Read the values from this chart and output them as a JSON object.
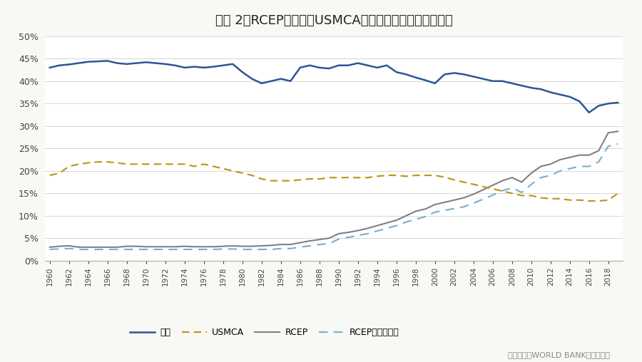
{
  "title": "图表 2：RCEP、欧盟及USMCA服务和货物出口占全球比重",
  "source_text": "数据来源：WORLD BANK、兴业研究",
  "years": [
    1960,
    1961,
    1962,
    1963,
    1964,
    1965,
    1966,
    1967,
    1968,
    1969,
    1970,
    1971,
    1972,
    1973,
    1974,
    1975,
    1976,
    1977,
    1978,
    1979,
    1980,
    1981,
    1982,
    1983,
    1984,
    1985,
    1986,
    1987,
    1988,
    1989,
    1990,
    1991,
    1992,
    1993,
    1994,
    1995,
    1996,
    1997,
    1998,
    1999,
    2000,
    2001,
    2002,
    2003,
    2004,
    2005,
    2006,
    2007,
    2008,
    2009,
    2010,
    2011,
    2012,
    2013,
    2014,
    2015,
    2016,
    2017,
    2018,
    2019
  ],
  "eu": [
    0.43,
    0.435,
    0.437,
    0.44,
    0.443,
    0.444,
    0.445,
    0.44,
    0.438,
    0.44,
    0.442,
    0.44,
    0.438,
    0.435,
    0.43,
    0.432,
    0.43,
    0.432,
    0.435,
    0.438,
    0.42,
    0.405,
    0.395,
    0.4,
    0.405,
    0.4,
    0.43,
    0.435,
    0.43,
    0.428,
    0.435,
    0.435,
    0.44,
    0.435,
    0.43,
    0.435,
    0.42,
    0.415,
    0.408,
    0.402,
    0.395,
    0.415,
    0.418,
    0.415,
    0.41,
    0.405,
    0.4,
    0.4,
    0.395,
    0.39,
    0.385,
    0.382,
    0.375,
    0.37,
    0.365,
    0.355,
    0.33,
    0.345,
    0.35,
    0.352
  ],
  "usmca": [
    0.19,
    0.195,
    0.21,
    0.215,
    0.218,
    0.22,
    0.22,
    0.218,
    0.215,
    0.215,
    0.215,
    0.215,
    0.215,
    0.215,
    0.215,
    0.21,
    0.215,
    0.21,
    0.205,
    0.2,
    0.195,
    0.19,
    0.182,
    0.178,
    0.178,
    0.178,
    0.18,
    0.182,
    0.182,
    0.185,
    0.185,
    0.185,
    0.185,
    0.185,
    0.188,
    0.19,
    0.19,
    0.188,
    0.19,
    0.19,
    0.19,
    0.186,
    0.18,
    0.175,
    0.17,
    0.165,
    0.16,
    0.155,
    0.15,
    0.145,
    0.145,
    0.14,
    0.138,
    0.138,
    0.135,
    0.135,
    0.133,
    0.133,
    0.135,
    0.15
  ],
  "rcep": [
    0.03,
    0.032,
    0.033,
    0.03,
    0.03,
    0.03,
    0.03,
    0.03,
    0.032,
    0.032,
    0.031,
    0.031,
    0.031,
    0.031,
    0.032,
    0.031,
    0.031,
    0.031,
    0.032,
    0.033,
    0.032,
    0.032,
    0.033,
    0.034,
    0.036,
    0.036,
    0.04,
    0.044,
    0.047,
    0.05,
    0.06,
    0.063,
    0.067,
    0.072,
    0.078,
    0.084,
    0.09,
    0.1,
    0.11,
    0.115,
    0.125,
    0.13,
    0.135,
    0.14,
    0.148,
    0.158,
    0.168,
    0.178,
    0.185,
    0.175,
    0.195,
    0.21,
    0.215,
    0.225,
    0.23,
    0.235,
    0.235,
    0.245,
    0.285,
    0.288
  ],
  "rcep_ex_india": [
    0.025,
    0.026,
    0.027,
    0.025,
    0.025,
    0.025,
    0.025,
    0.025,
    0.025,
    0.025,
    0.025,
    0.025,
    0.025,
    0.025,
    0.025,
    0.025,
    0.025,
    0.025,
    0.026,
    0.026,
    0.025,
    0.025,
    0.025,
    0.025,
    0.027,
    0.027,
    0.03,
    0.033,
    0.036,
    0.038,
    0.048,
    0.052,
    0.056,
    0.06,
    0.066,
    0.072,
    0.078,
    0.086,
    0.092,
    0.098,
    0.108,
    0.112,
    0.116,
    0.12,
    0.128,
    0.137,
    0.146,
    0.156,
    0.162,
    0.152,
    0.17,
    0.185,
    0.19,
    0.2,
    0.205,
    0.21,
    0.21,
    0.22,
    0.255,
    0.26
  ],
  "eu_color": "#2e5597",
  "usmca_color": "#b8960c",
  "rcep_color": "#808080",
  "rcep_ex_color": "#7aaecc",
  "ylim": [
    0,
    0.5
  ],
  "yticks": [
    0.0,
    0.05,
    0.1,
    0.15,
    0.2,
    0.25,
    0.3,
    0.35,
    0.4,
    0.45,
    0.5
  ],
  "background_color": "#f8f8f5",
  "plot_bg_color": "#ffffff"
}
